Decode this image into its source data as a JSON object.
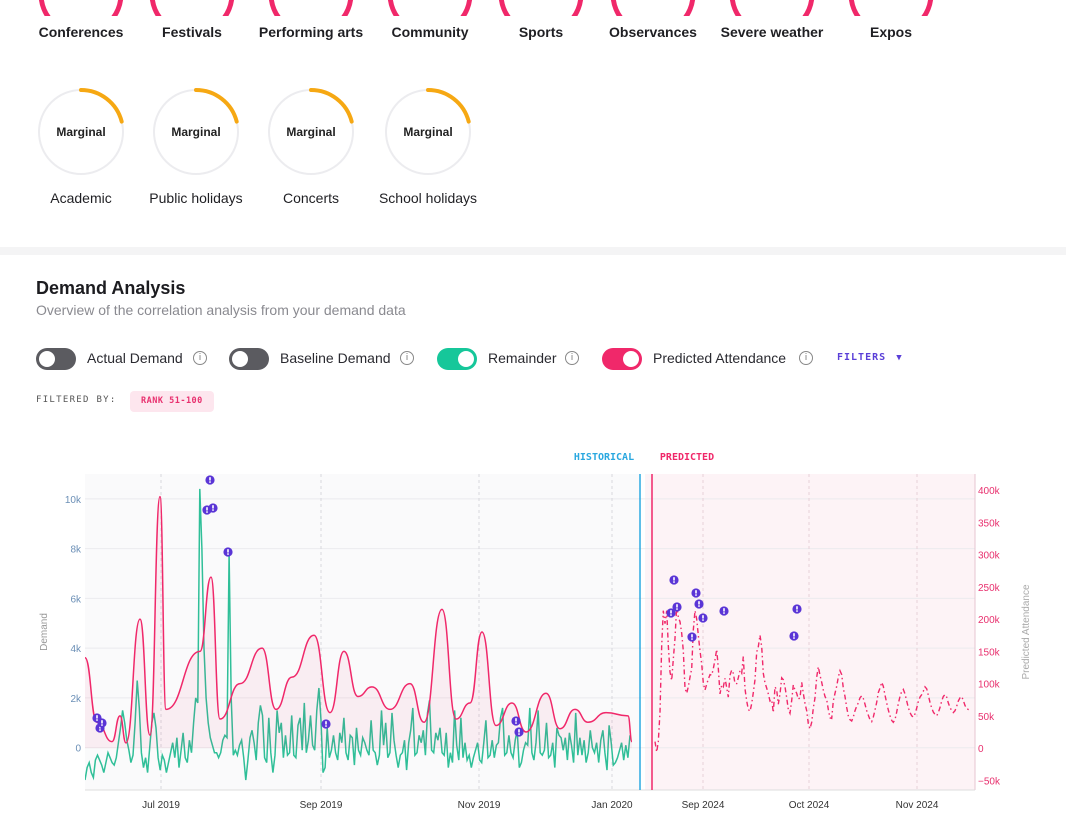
{
  "categories_top": [
    {
      "label": "Conferences"
    },
    {
      "label": "Festivals"
    },
    {
      "label": "Performing arts"
    },
    {
      "label": "Community"
    },
    {
      "label": "Sports"
    },
    {
      "label": "Observances"
    },
    {
      "label": "Severe weather"
    },
    {
      "label": "Expos"
    }
  ],
  "categories_marginal": [
    {
      "label": "Academic",
      "status": "Marginal"
    },
    {
      "label": "Public holidays",
      "status": "Marginal"
    },
    {
      "label": "Concerts",
      "status": "Marginal"
    },
    {
      "label": "School holidays",
      "status": "Marginal"
    }
  ],
  "demand": {
    "title": "Demand Analysis",
    "subtitle": "Overview of the correlation analysis from your demand data",
    "toggles": [
      {
        "label": "Actual Demand",
        "on": false
      },
      {
        "label": "Baseline Demand",
        "on": false
      },
      {
        "label": "Remainder",
        "on": true,
        "color": "#16c79a"
      },
      {
        "label": "Predicted Attendance",
        "on": true,
        "color": "#f0286a"
      }
    ],
    "filters_label": "FILTERS",
    "filtered_by_label": "FILTERED BY:",
    "filter_chip": "RANK 51-100",
    "historical_label": "HISTORICAL",
    "predicted_label": "PREDICTED"
  },
  "chart_data": {
    "type": "line",
    "ylabel": "Demand",
    "y2label": "Predicted Attendance",
    "y_ticks": [
      "10k",
      "8k",
      "6k",
      "4k",
      "2k",
      "0"
    ],
    "y2_ticks": [
      "400k",
      "350k",
      "300k",
      "250k",
      "200k",
      "150k",
      "100k",
      "50k",
      "0",
      "−50k"
    ],
    "x_ticks_historical": [
      "Jul 2019",
      "Sep 2019",
      "Nov 2019",
      "Jan 2020"
    ],
    "x_ticks_predicted": [
      "Sep 2024",
      "Oct 2024",
      "Nov 2024"
    ],
    "ylim": [
      -1700,
      11000
    ],
    "y2lim": [
      -65000,
      425000
    ],
    "colors": {
      "remainder": "#2fbf98",
      "attendance": "#f0286a",
      "historical": "#2aa8e0",
      "event": "#5a35d6"
    },
    "series": [
      {
        "name": "Remainder",
        "values": [
          -1300,
          -800,
          -600,
          -1000,
          -1200,
          -500,
          -300,
          -500,
          -700,
          -1000,
          -600,
          -200,
          -400,
          -600,
          -700,
          -400,
          200,
          800,
          1500,
          1000,
          300,
          -100,
          -600,
          -300,
          1000,
          2700,
          1600,
          -200,
          -800,
          -400,
          -1000,
          0,
          1000,
          1400,
          800,
          -400,
          -900,
          -300,
          -500,
          -1000,
          -600,
          -200,
          200,
          -400,
          400,
          -800,
          -100,
          600,
          -400,
          -600,
          300,
          -200,
          1000,
          2000,
          1800,
          10400,
          8000,
          4000,
          2000,
          1000,
          400,
          100,
          -200,
          -200,
          -400,
          -200,
          300,
          500,
          400,
          7800,
          2000,
          -300,
          -100,
          -300,
          100,
          300,
          -400,
          -1300,
          -500,
          400,
          700,
          200,
          -500,
          1000,
          1700,
          1300,
          -400,
          -600,
          1200,
          -200,
          -1000,
          -300,
          1500,
          600,
          1000,
          -400,
          500,
          -300,
          -200,
          1300,
          -300,
          -400,
          900,
          1200,
          -100,
          1800,
          -200,
          300,
          1300,
          100,
          -100,
          1500,
          2400,
          1100,
          -1000,
          -800,
          800,
          -400,
          -100,
          500,
          -200,
          -500,
          600,
          200,
          1200,
          -200,
          -500,
          500,
          400,
          -700,
          800,
          -100,
          -300,
          400,
          200,
          -100,
          -300,
          1100,
          -100,
          -200,
          -700,
          -300,
          1500,
          100,
          1000,
          -400,
          -200,
          1400,
          300,
          -300,
          -800,
          -300,
          -200,
          300,
          -900,
          200,
          700,
          1600,
          -300,
          -200,
          500,
          200,
          700,
          -300,
          1400,
          1900,
          -100,
          -200,
          600,
          300,
          800,
          -200,
          -300,
          600,
          -800,
          -200,
          -600,
          1500,
          100,
          -500,
          1200,
          -400,
          200,
          -500,
          -300,
          -800,
          -400,
          -100,
          200,
          -500,
          -600,
          200,
          1100,
          -400,
          -300,
          300,
          -400,
          100,
          200,
          1200,
          1600,
          -300,
          -200,
          500,
          -200,
          -400,
          300,
          700,
          -800,
          -600,
          -100,
          200,
          100,
          1600,
          -200,
          -500,
          200,
          1500,
          -200,
          -300,
          -100,
          1000,
          -400,
          -300,
          200,
          -800,
          800,
          500,
          400,
          -100,
          400,
          -500,
          600,
          100,
          -600,
          1400,
          -300,
          400,
          -300,
          300,
          -600,
          -200,
          700,
          0,
          -200,
          200,
          -600,
          300,
          700,
          -200,
          -900,
          900,
          200,
          -700,
          -600,
          -400,
          -100,
          200,
          -500,
          100,
          -400,
          500
        ]
      },
      {
        "name": "Predicted Attendance",
        "values": [
          10000,
          -6000,
          10000,
          56000,
          159000,
          213000,
          193000,
          213000,
          159000,
          118000,
          105000,
          138000,
          170000,
          221000,
          203000,
          196000,
          178000,
          151000,
          93000,
          85000,
          95000,
          110000,
          123000,
          183000,
          213000,
          200000,
          175000,
          151000,
          130000,
          101000,
          90000,
          99000,
          107000,
          114000,
          113000,
          123000,
          137000,
          153000,
          124000,
          84000,
          98000,
          95000,
          108000,
          94000,
          79000,
          113000,
          121000,
          116000,
          100000,
          100000,
          109000,
          120000,
          116000,
          142000,
          92000,
          73000,
          60000,
          57000,
          69000,
          86000,
          106000,
          149000,
          157000,
          175000,
          157000,
          116000,
          101000,
          93000,
          84000,
          73000,
          75000,
          55000,
          95000,
          90000,
          68000,
          84000,
          109000,
          106000,
          95000,
          78000,
          60000,
          54000,
          74000,
          98000,
          90000,
          85000,
          76000,
          78000,
          102000,
          85000,
          69000,
          58000,
          38000,
          30000,
          40000,
          62000,
          78000,
          110000,
          126000,
          113000,
          102000,
          90000,
          80000,
          75000,
          60000,
          47000,
          46000,
          73000,
          85000,
          96000,
          110000,
          120000,
          114000,
          93000,
          80000,
          63000,
          50000,
          44000,
          42000,
          48000,
          58000,
          65000,
          70000,
          78000,
          81000,
          77000,
          68000,
          58000,
          51000,
          44000,
          41000,
          48000,
          59000,
          71000,
          86000,
          93000,
          102000,
          96000,
          82000,
          70000,
          59000,
          50000,
          43000,
          40000,
          44000,
          56000,
          69000,
          80000,
          88000,
          91000,
          84000,
          73000,
          63000,
          55000,
          50000,
          48000,
          53000,
          62000,
          72000,
          79000,
          83000,
          88000,
          95000,
          92000,
          82000,
          71000,
          62000,
          56000,
          52000,
          50000,
          55000,
          63000,
          73000,
          80000,
          83000,
          79000,
          70000,
          63000,
          58000,
          55000,
          58000,
          65000,
          73000,
          78000,
          80000,
          74000,
          66000,
          61000,
          60000,
          62000
        ]
      }
    ]
  }
}
